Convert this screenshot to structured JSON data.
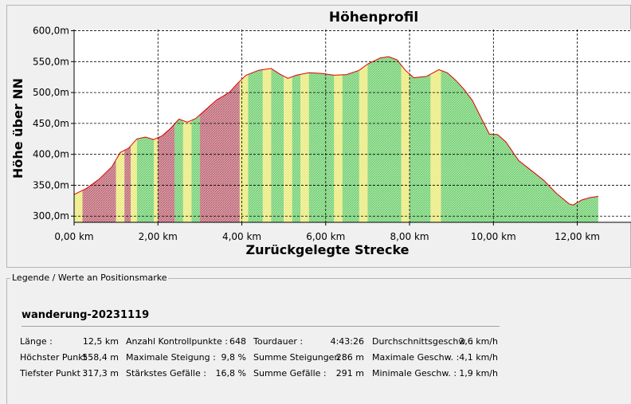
{
  "chart_data": {
    "type": "area",
    "title": "Höhenprofil",
    "xlabel": "Zurückgelegte Strecke",
    "ylabel": "Höhe über NN",
    "xlim": [
      0,
      13.3
    ],
    "ylim": [
      290,
      602
    ],
    "x_ticks": [
      {
        "value": 0,
        "label": "0,00 km"
      },
      {
        "value": 2,
        "label": "2,00 km"
      },
      {
        "value": 4,
        "label": "4,00 km"
      },
      {
        "value": 6,
        "label": "6,00 km"
      },
      {
        "value": 8,
        "label": "8,00 km"
      },
      {
        "value": 10,
        "label": "10,00 km"
      },
      {
        "value": 12,
        "label": "12,00 km"
      }
    ],
    "y_ticks": [
      {
        "value": 300,
        "label": "300,0m"
      },
      {
        "value": 350,
        "label": "350,0m"
      },
      {
        "value": 400,
        "label": "400,0m"
      },
      {
        "value": 450,
        "label": "450,0m"
      },
      {
        "value": 500,
        "label": "500,0m"
      },
      {
        "value": 550,
        "label": "550,0m"
      },
      {
        "value": 600,
        "label": "600,0m"
      }
    ],
    "grid": true,
    "line_color": "#e00000",
    "segment_colors": {
      "steep": "#b85a6a",
      "moderate": "#e8e870",
      "gentle": "#66cc66"
    },
    "profile": [
      [
        0,
        335
      ],
      [
        0.3,
        345
      ],
      [
        0.6,
        360
      ],
      [
        0.9,
        380
      ],
      [
        1.1,
        403
      ],
      [
        1.3,
        410
      ],
      [
        1.5,
        425
      ],
      [
        1.7,
        428
      ],
      [
        1.9,
        424
      ],
      [
        2.1,
        430
      ],
      [
        2.3,
        442
      ],
      [
        2.5,
        457
      ],
      [
        2.7,
        452
      ],
      [
        2.9,
        458
      ],
      [
        3.1,
        470
      ],
      [
        3.4,
        488
      ],
      [
        3.7,
        500
      ],
      [
        3.9,
        515
      ],
      [
        4.1,
        528
      ],
      [
        4.4,
        536
      ],
      [
        4.7,
        539
      ],
      [
        4.9,
        530
      ],
      [
        5.1,
        523
      ],
      [
        5.3,
        528
      ],
      [
        5.6,
        532
      ],
      [
        5.9,
        531
      ],
      [
        6.2,
        528
      ],
      [
        6.5,
        529
      ],
      [
        6.8,
        536
      ],
      [
        7.0,
        546
      ],
      [
        7.3,
        556
      ],
      [
        7.5,
        558
      ],
      [
        7.7,
        553
      ],
      [
        7.9,
        536
      ],
      [
        8.1,
        524
      ],
      [
        8.4,
        526
      ],
      [
        8.7,
        537
      ],
      [
        8.9,
        532
      ],
      [
        9.1,
        520
      ],
      [
        9.3,
        505
      ],
      [
        9.5,
        487
      ],
      [
        9.7,
        460
      ],
      [
        9.9,
        433
      ],
      [
        10.1,
        432
      ],
      [
        10.3,
        420
      ],
      [
        10.6,
        390
      ],
      [
        10.9,
        374
      ],
      [
        11.2,
        358
      ],
      [
        11.5,
        337
      ],
      [
        11.8,
        320
      ],
      [
        11.9,
        318
      ],
      [
        12.1,
        326
      ],
      [
        12.3,
        330
      ],
      [
        12.5,
        332
      ]
    ],
    "bands": [
      {
        "from": 0.0,
        "to": 0.2,
        "c": "moderate"
      },
      {
        "from": 0.2,
        "to": 1.0,
        "c": "steep"
      },
      {
        "from": 1.0,
        "to": 1.2,
        "c": "moderate"
      },
      {
        "from": 1.2,
        "to": 1.35,
        "c": "steep"
      },
      {
        "from": 1.35,
        "to": 1.5,
        "c": "moderate"
      },
      {
        "from": 1.5,
        "to": 1.9,
        "c": "gentle"
      },
      {
        "from": 1.9,
        "to": 2.0,
        "c": "moderate"
      },
      {
        "from": 2.0,
        "to": 2.4,
        "c": "steep"
      },
      {
        "from": 2.4,
        "to": 2.6,
        "c": "gentle"
      },
      {
        "from": 2.6,
        "to": 2.8,
        "c": "moderate"
      },
      {
        "from": 2.8,
        "to": 3.0,
        "c": "gentle"
      },
      {
        "from": 3.0,
        "to": 3.95,
        "c": "steep"
      },
      {
        "from": 3.95,
        "to": 4.15,
        "c": "moderate"
      },
      {
        "from": 4.15,
        "to": 4.5,
        "c": "gentle"
      },
      {
        "from": 4.5,
        "to": 4.7,
        "c": "moderate"
      },
      {
        "from": 4.7,
        "to": 5.0,
        "c": "gentle"
      },
      {
        "from": 5.0,
        "to": 5.2,
        "c": "moderate"
      },
      {
        "from": 5.2,
        "to": 5.4,
        "c": "gentle"
      },
      {
        "from": 5.4,
        "to": 5.6,
        "c": "moderate"
      },
      {
        "from": 5.6,
        "to": 6.2,
        "c": "gentle"
      },
      {
        "from": 6.2,
        "to": 6.4,
        "c": "moderate"
      },
      {
        "from": 6.4,
        "to": 6.8,
        "c": "gentle"
      },
      {
        "from": 6.8,
        "to": 7.0,
        "c": "moderate"
      },
      {
        "from": 7.0,
        "to": 7.8,
        "c": "gentle"
      },
      {
        "from": 7.8,
        "to": 8.0,
        "c": "moderate"
      },
      {
        "from": 8.0,
        "to": 8.5,
        "c": "gentle"
      },
      {
        "from": 8.5,
        "to": 8.75,
        "c": "moderate"
      },
      {
        "from": 8.75,
        "to": 12.5,
        "c": "gentle"
      }
    ]
  },
  "legend": {
    "caption": "Legende / Werte an Positionsmarke",
    "track_name": "wanderung-20231119",
    "stats": [
      [
        {
          "label": "Länge :",
          "value": "12,5 km"
        },
        {
          "label": "Höchster Punkt :",
          "value": "558,4 m"
        },
        {
          "label": "Tiefster Punkt :",
          "value": "317,3 m"
        }
      ],
      [
        {
          "label": "Anzahl Kontrollpunkte :",
          "value": "648"
        },
        {
          "label": "Maximale Steigung :",
          "value": "9,8 %"
        },
        {
          "label": "Stärkstes Gefälle :",
          "value": "16,8 %"
        }
      ],
      [
        {
          "label": "Tourdauer :",
          "value": "4:43:26"
        },
        {
          "label": "Summe Steigungen :",
          "value": "286 m"
        },
        {
          "label": "Summe Gefälle :",
          "value": "291 m"
        }
      ],
      [
        {
          "label": "Durchschnittsgeschw. :",
          "value": "2,6 km/h"
        },
        {
          "label": "Maximale Geschw. :",
          "value": "4,1 km/h"
        },
        {
          "label": "Minimale Geschw. :",
          "value": "1,9 km/h"
        }
      ]
    ]
  }
}
